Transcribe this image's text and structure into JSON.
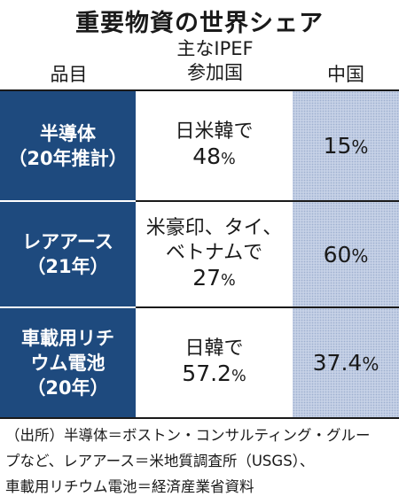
{
  "title": "重要物資の世界シェア",
  "headers": {
    "item": "品目",
    "ipef_line1": "主なIPEF",
    "ipef_line2": "参加国",
    "china": "中国"
  },
  "rows": [
    {
      "item_line1": "半導体",
      "item_line2": "（20年推計）",
      "ipef_line1": "日米韓で",
      "ipef_share": "48",
      "ipef_unit": "%",
      "china_share": "15",
      "china_unit": "%"
    },
    {
      "item_line1": "レアアース",
      "item_line2": "（21年）",
      "ipef_line1": "米豪印、タイ、",
      "ipef_line2": "ベトナムで",
      "ipef_share": "27",
      "ipef_unit": "%",
      "china_share": "60",
      "china_unit": "%"
    },
    {
      "item_line1": "車載用リチ",
      "item_line2": "ウム電池",
      "item_line3": "（20年）",
      "ipef_line1": "日韓で",
      "ipef_share": "57.2",
      "ipef_unit": "%",
      "china_share": "37.4",
      "china_unit": "%"
    }
  ],
  "source": {
    "line1": "（出所）半導体＝ボストン・コンサルティング・グルー",
    "line2": "プなど、レアアース＝米地質調査所（USGS）、",
    "line3": "車載用リチウム電池＝経済産業省資料"
  }
}
